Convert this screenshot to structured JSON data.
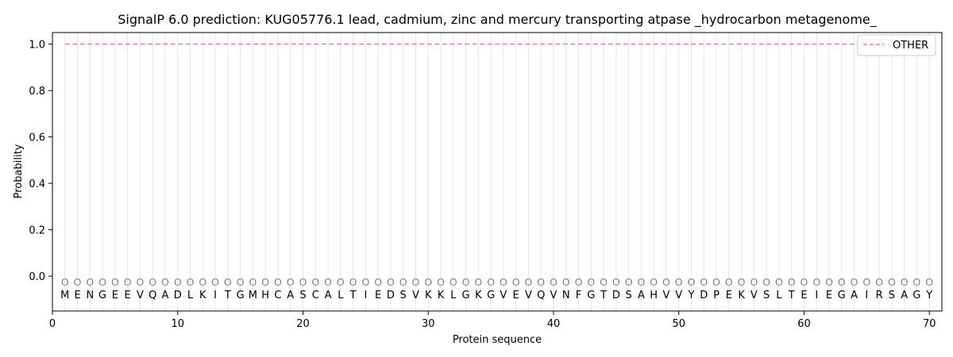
{
  "chart_data": {
    "type": "line",
    "title": "SignalP 6.0 prediction: KUG05776.1 lead, cadmium, zinc and mercury transporting atpase _hydrocarbon metagenome_",
    "xlabel": "Protein sequence",
    "ylabel": "Probability",
    "xlim": [
      0,
      71
    ],
    "ylim": [
      -0.15,
      1.05
    ],
    "xticks": [
      0,
      10,
      20,
      30,
      40,
      50,
      60,
      70
    ],
    "yticks": [
      0.0,
      0.2,
      0.4,
      0.6,
      0.8,
      1.0
    ],
    "xtick_labels": [
      "0",
      "10",
      "20",
      "30",
      "40",
      "50",
      "60",
      "70"
    ],
    "ytick_labels": [
      "0.0",
      "0.2",
      "0.4",
      "0.6",
      "0.8",
      "1.0"
    ],
    "sequence": [
      "M",
      "E",
      "N",
      "G",
      "E",
      "E",
      "V",
      "Q",
      "A",
      "D",
      "L",
      "K",
      "I",
      "T",
      "G",
      "M",
      "H",
      "C",
      "A",
      "S",
      "C",
      "A",
      "L",
      "T",
      "I",
      "E",
      "D",
      "S",
      "V",
      "K",
      "K",
      "L",
      "G",
      "K",
      "G",
      "V",
      "E",
      "V",
      "Q",
      "V",
      "N",
      "F",
      "G",
      "T",
      "D",
      "S",
      "A",
      "H",
      "V",
      "V",
      "Y",
      "D",
      "P",
      "E",
      "K",
      "V",
      "S",
      "L",
      "T",
      "E",
      "I",
      "E",
      "G",
      "A",
      "I",
      "R",
      "S",
      "A",
      "G",
      "Y"
    ],
    "region_labels": [
      "O",
      "O",
      "O",
      "O",
      "O",
      "O",
      "O",
      "O",
      "O",
      "O",
      "O",
      "O",
      "O",
      "O",
      "O",
      "O",
      "O",
      "O",
      "O",
      "O",
      "O",
      "O",
      "O",
      "O",
      "O",
      "O",
      "O",
      "O",
      "O",
      "O",
      "O",
      "O",
      "O",
      "O",
      "O",
      "O",
      "O",
      "O",
      "O",
      "O",
      "O",
      "O",
      "O",
      "O",
      "O",
      "O",
      "O",
      "O",
      "O",
      "O",
      "O",
      "O",
      "O",
      "O",
      "O",
      "O",
      "O",
      "O",
      "O",
      "O",
      "O",
      "O",
      "O",
      "O",
      "O",
      "O",
      "O",
      "O",
      "O",
      "O"
    ],
    "series": [
      {
        "name": "OTHER",
        "color": "#f08080",
        "style": "dashed",
        "x_start": 1,
        "x_end": 70,
        "value": 1.0
      }
    ],
    "legend_position": "top-right",
    "grid": "vertical lines at each residue"
  }
}
